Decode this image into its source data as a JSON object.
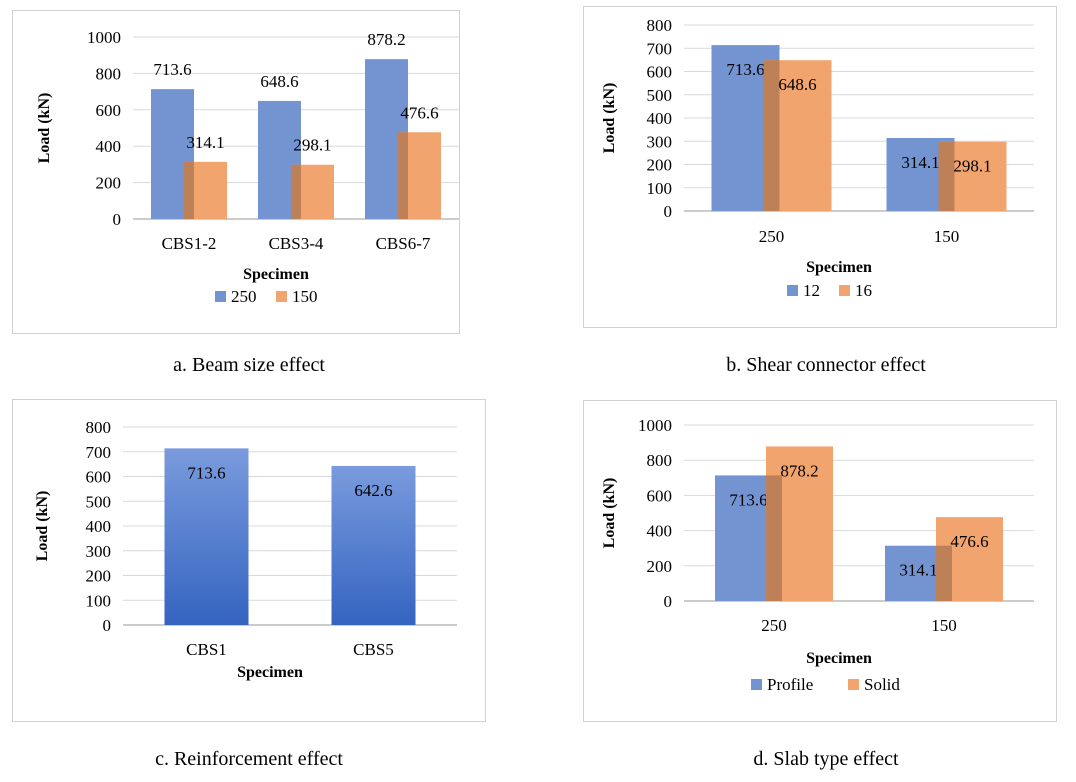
{
  "chart_data": [
    {
      "type": "bar",
      "categories": [
        "CBS1-2",
        "CBS3-4",
        "CBS6-7"
      ],
      "series": [
        {
          "name": "250",
          "values": [
            713.6,
            648.6,
            878.2
          ],
          "color": "#7494D1",
          "labels": [
            "713.6",
            "648.6",
            "878.2"
          ]
        },
        {
          "name": "150",
          "values": [
            314.1,
            298.1,
            476.6
          ],
          "color": "#F2A46F",
          "labels": [
            "314.1",
            "298.1",
            "476.6"
          ]
        }
      ],
      "yticks": [
        "0",
        "200",
        "400",
        "600",
        "800",
        "1000"
      ],
      "ylim": [
        0,
        1000
      ],
      "xlabel": "Specimen",
      "ylabel": "Load (kN)",
      "grid": true,
      "legend": "bottom",
      "caption": "a. Beam size effect"
    },
    {
      "type": "bar",
      "categories": [
        "250",
        "150"
      ],
      "series": [
        {
          "name": "12",
          "values": [
            713.6,
            314.1
          ],
          "color": "#7494D1",
          "labels": [
            "713.6",
            "314.1"
          ]
        },
        {
          "name": "16",
          "values": [
            648.6,
            298.1
          ],
          "color": "#F2A46F",
          "labels": [
            "648.6",
            "298.1"
          ]
        }
      ],
      "yticks": [
        "0",
        "100",
        "200",
        "300",
        "400",
        "500",
        "600",
        "700",
        "800"
      ],
      "ylim": [
        0,
        800
      ],
      "xlabel": "Specimen",
      "ylabel": "Load (kN)",
      "grid": true,
      "legend": "bottom",
      "caption": "b. Shear connector effect"
    },
    {
      "type": "bar",
      "categories": [
        "CBS1",
        "CBS5"
      ],
      "series": [
        {
          "name": "",
          "values": [
            713.6,
            642.6
          ],
          "color": "#3464C0",
          "labels": [
            "713.6",
            "642.6"
          ]
        }
      ],
      "yticks": [
        "0",
        "100",
        "200",
        "300",
        "400",
        "500",
        "600",
        "700",
        "800"
      ],
      "ylim": [
        0,
        800
      ],
      "xlabel": "Specimen",
      "ylabel": "Load (kN)",
      "grid": true,
      "legend": "none",
      "caption": "c. Reinforcement effect"
    },
    {
      "type": "bar",
      "categories": [
        "250",
        "150"
      ],
      "series": [
        {
          "name": "Profile",
          "values": [
            713.6,
            314.1
          ],
          "color": "#7494D1",
          "labels": [
            "713.6",
            "314.1"
          ]
        },
        {
          "name": "Solid",
          "values": [
            878.2,
            476.6
          ],
          "color": "#F2A46F",
          "labels": [
            "878.2",
            "476.6"
          ]
        }
      ],
      "yticks": [
        "0",
        "200",
        "400",
        "600",
        "800",
        "1000"
      ],
      "ylim": [
        0,
        1000
      ],
      "xlabel": "Specimen",
      "ylabel": "Load (kN)",
      "grid": true,
      "legend": "bottom",
      "caption": "d. Slab type effect"
    }
  ]
}
